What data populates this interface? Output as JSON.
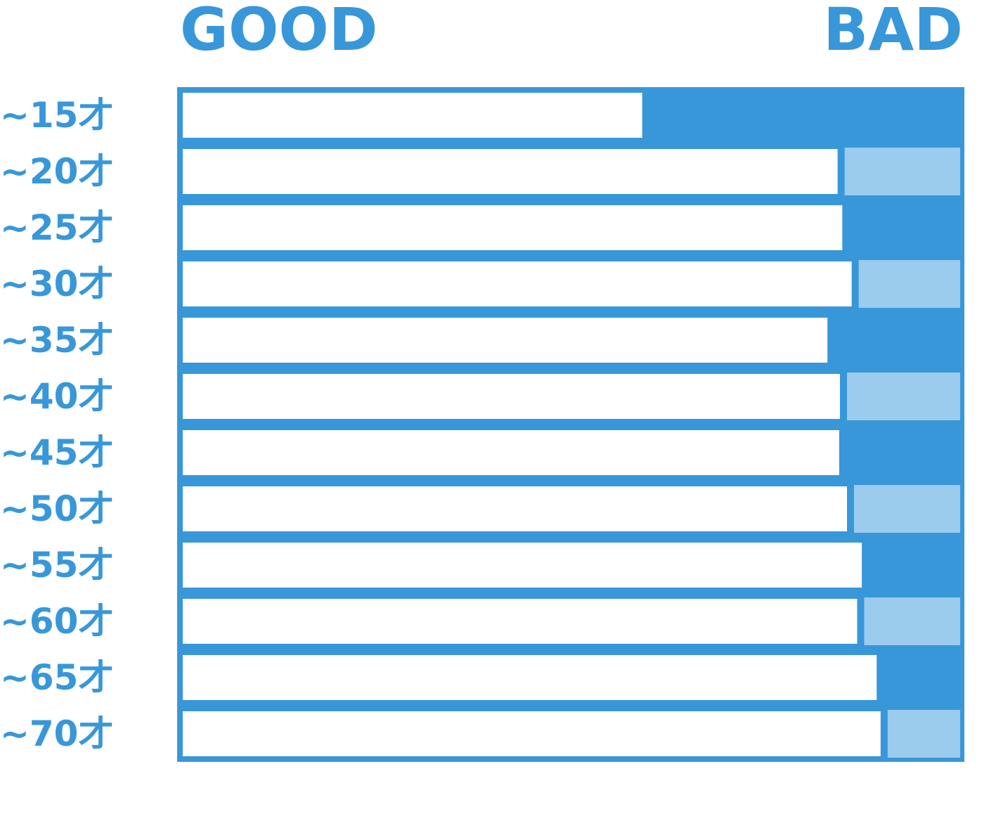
{
  "colors": {
    "primary": "#3897d9",
    "light": "#9bcbed",
    "background": "#ffffff"
  },
  "chart_data": {
    "type": "bar",
    "stacked": true,
    "orientation": "horizontal",
    "scale_labels": {
      "left": "GOOD",
      "right": "BAD"
    },
    "categories": [
      "~15才",
      "~20才",
      "~25才",
      "~30才",
      "~35才",
      "~40才",
      "~45才",
      "~50才",
      "~55才",
      "~60才",
      "~65才",
      "~70才"
    ],
    "series": [
      {
        "name": "GOOD",
        "values": [
          59.5,
          84.5,
          85.1,
          86.3,
          83.2,
          84.8,
          84.7,
          85.7,
          87.6,
          87.0,
          89.5,
          90.0
        ]
      },
      {
        "name": "BAD",
        "values": [
          40.5,
          15.5,
          14.9,
          13.7,
          16.8,
          15.2,
          15.3,
          14.3,
          12.4,
          13.0,
          10.5,
          10.0
        ]
      }
    ],
    "bad_fill": [
      "dark",
      "light",
      "dark",
      "light",
      "dark",
      "light",
      "dark",
      "light",
      "dark",
      "light",
      "dark",
      "light"
    ],
    "xlim": [
      0,
      100
    ],
    "grid": false,
    "legend": "none"
  }
}
